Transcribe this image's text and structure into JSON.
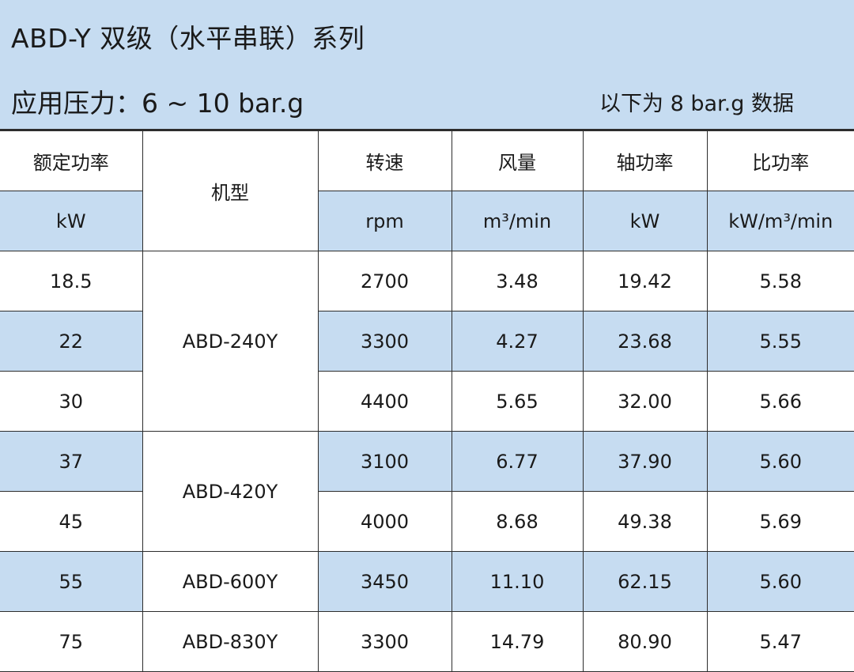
{
  "header": {
    "title": "ABD-Y 双级（水平串联）系列",
    "pressure": "应用压力：6 ~ 10 bar.g",
    "note": "以下为  8 bar.g  数据"
  },
  "columns": {
    "power": {
      "label": "额定功率",
      "unit": "kW"
    },
    "model": {
      "label": "机型"
    },
    "speed": {
      "label": "转速",
      "unit": "rpm"
    },
    "flow": {
      "label": "风量",
      "unit": "m³/min"
    },
    "shaft": {
      "label": "轴功率",
      "unit": "kW"
    },
    "specific": {
      "label": "比功率",
      "unit": "kW/m³/min"
    }
  },
  "models": [
    "ABD-240Y",
    "ABD-420Y",
    "ABD-600Y",
    "ABD-830Y"
  ],
  "rows": [
    {
      "power": "18.5",
      "speed": "2700",
      "flow": "3.48",
      "shaft": "19.42",
      "specific": "5.58"
    },
    {
      "power": "22",
      "speed": "3300",
      "flow": "4.27",
      "shaft": "23.68",
      "specific": "5.55"
    },
    {
      "power": "30",
      "speed": "4400",
      "flow": "5.65",
      "shaft": "32.00",
      "specific": "5.66"
    },
    {
      "power": "37",
      "speed": "3100",
      "flow": "6.77",
      "shaft": "37.90",
      "specific": "5.60"
    },
    {
      "power": "45",
      "speed": "4000",
      "flow": "8.68",
      "shaft": "49.38",
      "specific": "5.69"
    },
    {
      "power": "55",
      "speed": "3450",
      "flow": "11.10",
      "shaft": "62.15",
      "specific": "5.60"
    },
    {
      "power": "75",
      "speed": "3300",
      "flow": "14.79",
      "shaft": "80.90",
      "specific": "5.47"
    }
  ],
  "colors": {
    "stripe": "#c6dcf1",
    "border": "#2d2d2d"
  }
}
